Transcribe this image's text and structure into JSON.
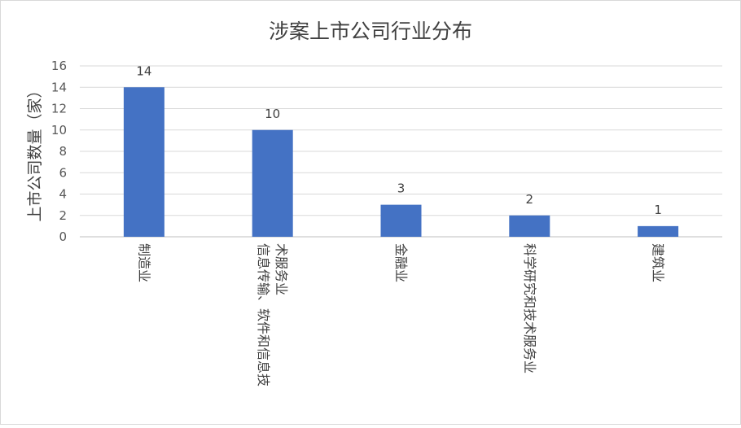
{
  "chart_data": {
    "type": "bar",
    "title": "涉案上市公司行业分布",
    "xlabel": "",
    "ylabel": "上市公司数量（家）",
    "ylim": [
      0,
      16
    ],
    "yticks": [
      0,
      2,
      4,
      6,
      8,
      10,
      12,
      14,
      16
    ],
    "grid": true,
    "legend": "none",
    "bar_color": "#4472C4",
    "categories": [
      [
        "制造业"
      ],
      [
        "信息传输、软件和信息技",
        "术服务业"
      ],
      [
        "金融业"
      ],
      [
        "科学研究和技术服务业"
      ],
      [
        "建筑业"
      ]
    ],
    "values": [
      14,
      10,
      3,
      2,
      1
    ]
  }
}
